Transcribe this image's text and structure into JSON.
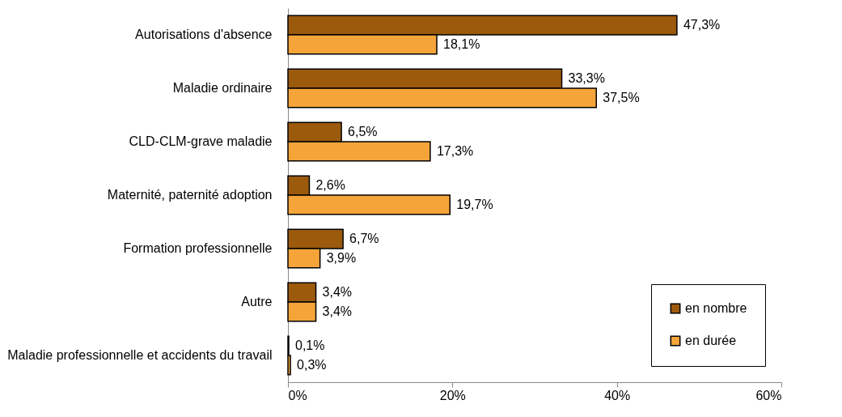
{
  "chart_data": {
    "type": "bar",
    "orientation": "horizontal",
    "categories": [
      "Autorisations d'absence",
      "Maladie ordinaire",
      "CLD-CLM-grave maladie",
      "Maternité, paternité adoption",
      "Formation professionnelle",
      "Autre",
      "Maladie professionnelle et accidents du travail"
    ],
    "series": [
      {
        "name": "en nombre",
        "color": "#9c5a0c",
        "values": [
          47.3,
          33.3,
          6.5,
          2.6,
          6.7,
          3.4,
          0.1
        ],
        "value_labels": [
          "47,3%",
          "33,3%",
          "6,5%",
          "2,6%",
          "6,7%",
          "3,4%",
          "0,1%"
        ]
      },
      {
        "name": "en durée",
        "color": "#f5a43a",
        "values": [
          18.1,
          37.5,
          17.3,
          19.7,
          3.9,
          3.4,
          0.3
        ],
        "value_labels": [
          "18,1%",
          "37,5%",
          "17,3%",
          "19,7%",
          "3,9%",
          "3,4%",
          "0,3%"
        ]
      }
    ],
    "xlim": [
      0,
      60
    ],
    "xticks": [
      {
        "value": 0,
        "label": "0%"
      },
      {
        "value": 20,
        "label": "20%"
      },
      {
        "value": 40,
        "label": "40%"
      },
      {
        "value": 60,
        "label": "60%"
      }
    ],
    "legend": "bottom right"
  }
}
